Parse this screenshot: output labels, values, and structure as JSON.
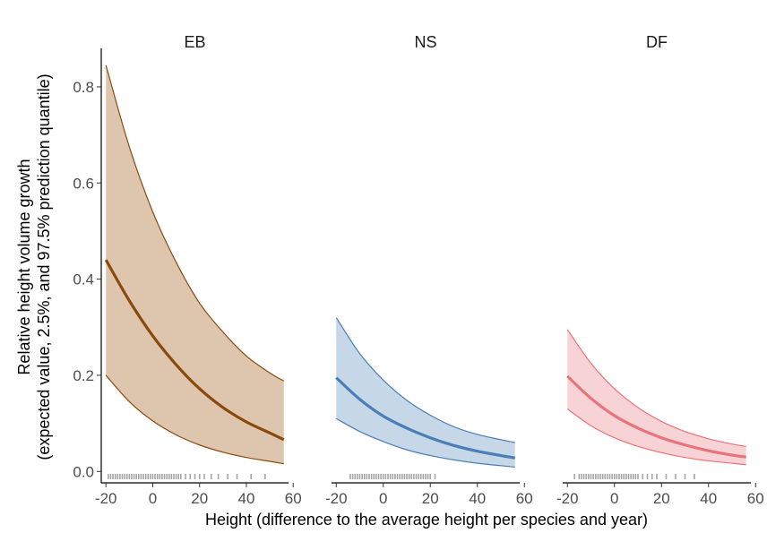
{
  "chart_data": {
    "type": "line",
    "xlabel": "Height (difference to the average height per species and year)",
    "ylabel_lines": [
      "Relative height volume growth",
      "(expected value, 2.5%, and 97.5% prediction quantile)"
    ],
    "xlim": [
      -22,
      58
    ],
    "ylim": [
      -0.02,
      0.88
    ],
    "x_ticks": [
      -20,
      0,
      20,
      40,
      60
    ],
    "x_tick_labels": [
      "-20",
      "0",
      "20",
      "40",
      "60"
    ],
    "y_ticks": [
      0.0,
      0.2,
      0.4,
      0.6,
      0.8
    ],
    "y_tick_labels": [
      "0.0",
      "0.2",
      "0.4",
      "0.6",
      "0.8"
    ],
    "x": [
      -20,
      -10,
      0,
      10,
      20,
      30,
      40,
      50,
      56
    ],
    "series": [
      {
        "name": "EB",
        "color": "#8B4A0C",
        "fill": "#DEC6AE",
        "mean": [
          0.44,
          0.355,
          0.282,
          0.222,
          0.172,
          0.133,
          0.103,
          0.08,
          0.066
        ],
        "lower": [
          0.2,
          0.145,
          0.105,
          0.076,
          0.055,
          0.04,
          0.029,
          0.021,
          0.016
        ],
        "upper": [
          0.845,
          0.675,
          0.54,
          0.435,
          0.35,
          0.29,
          0.24,
          0.205,
          0.188
        ],
        "rug": [
          -19,
          -18,
          -17,
          -16,
          -15,
          -14,
          -13,
          -12,
          -11,
          -10,
          -9,
          -8,
          -7,
          -6,
          -5,
          -4,
          -3,
          -2,
          -1,
          0,
          1,
          2,
          3,
          4,
          5,
          6,
          7,
          8,
          9,
          10,
          11,
          12,
          14,
          16,
          18,
          20,
          22,
          25,
          28,
          32,
          36,
          42,
          48
        ]
      },
      {
        "name": "NS",
        "color": "#4A7EB8",
        "fill": "#C6D7E8",
        "mean": [
          0.195,
          0.15,
          0.115,
          0.09,
          0.07,
          0.054,
          0.042,
          0.033,
          0.028
        ],
        "lower": [
          0.11,
          0.083,
          0.062,
          0.045,
          0.033,
          0.024,
          0.017,
          0.012,
          0.009
        ],
        "upper": [
          0.32,
          0.245,
          0.19,
          0.148,
          0.117,
          0.093,
          0.077,
          0.066,
          0.06
        ],
        "rug": [
          -14,
          -13,
          -12,
          -11,
          -10,
          -9,
          -8,
          -7,
          -6,
          -5,
          -4,
          -3,
          -2,
          -1,
          0,
          1,
          2,
          3,
          4,
          5,
          6,
          7,
          8,
          9,
          10,
          11,
          12,
          13,
          14,
          15,
          16,
          17,
          18,
          19,
          20,
          22
        ]
      },
      {
        "name": "DF",
        "color": "#E8737B",
        "fill": "#F8D3D5",
        "mean": [
          0.198,
          0.152,
          0.116,
          0.09,
          0.07,
          0.055,
          0.043,
          0.034,
          0.03
        ],
        "lower": [
          0.13,
          0.095,
          0.07,
          0.052,
          0.039,
          0.029,
          0.022,
          0.017,
          0.014
        ],
        "upper": [
          0.295,
          0.225,
          0.172,
          0.133,
          0.104,
          0.083,
          0.068,
          0.057,
          0.052
        ],
        "rug": [
          -17,
          -15,
          -14,
          -13,
          -12,
          -11,
          -10,
          -9,
          -8,
          -7,
          -6,
          -5,
          -4,
          -3,
          -2,
          -1,
          0,
          1,
          2,
          3,
          4,
          5,
          6,
          7,
          8,
          9,
          10,
          12,
          14,
          16,
          18,
          22,
          26,
          30,
          34
        ]
      }
    ]
  }
}
